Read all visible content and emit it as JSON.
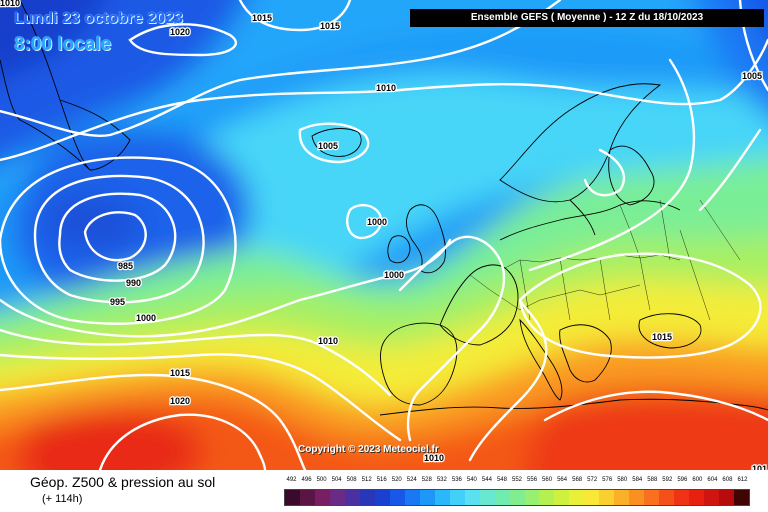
{
  "header": {
    "date_line": "Lundi 23 octobre 2023",
    "time_line": "8:00 locale",
    "run_info": "Ensemble GEFS  ( Moyenne )  -  12 Z du 18/10/2023"
  },
  "copyright": "Copyright © 2023 Meteociel.fr",
  "footer": {
    "title": "Géop. Z500 & pression au sol",
    "subtitle": "(+ 114h)"
  },
  "isobar_labels": [
    "1010",
    "1020",
    "1015",
    "1015",
    "1010",
    "1005",
    "1005",
    "1000",
    "985",
    "990",
    "995",
    "1000",
    "1000",
    "1010",
    "1015",
    "1020",
    "1015",
    "1010",
    "101"
  ],
  "legend": {
    "values": [
      "492",
      "496",
      "500",
      "504",
      "508",
      "512",
      "516",
      "520",
      "524",
      "528",
      "532",
      "536",
      "540",
      "544",
      "548",
      "552",
      "556",
      "560",
      "564",
      "568",
      "572",
      "576",
      "580",
      "584",
      "588",
      "592",
      "596",
      "600",
      "604",
      "608",
      "612"
    ],
    "colors": [
      "#3a0a2c",
      "#5a1446",
      "#7a1e64",
      "#6a2a86",
      "#4a30a0",
      "#2a36b8",
      "#1a40d0",
      "#1858e8",
      "#1a78f4",
      "#1e98f8",
      "#2ab8fa",
      "#40d0fa",
      "#5ae0f0",
      "#68e8d0",
      "#70ecb0",
      "#80ee90",
      "#98f070",
      "#b4f050",
      "#d0f040",
      "#eaf038",
      "#fae838",
      "#fad030",
      "#fab028",
      "#fa9020",
      "#f87020",
      "#f45018",
      "#ee3414",
      "#e82010",
      "#d01410",
      "#b80c0c",
      "#400404"
    ]
  },
  "colors": {
    "header_bg": "#000000",
    "isobar": "#ffffff",
    "date_text": "#1a66ff"
  }
}
